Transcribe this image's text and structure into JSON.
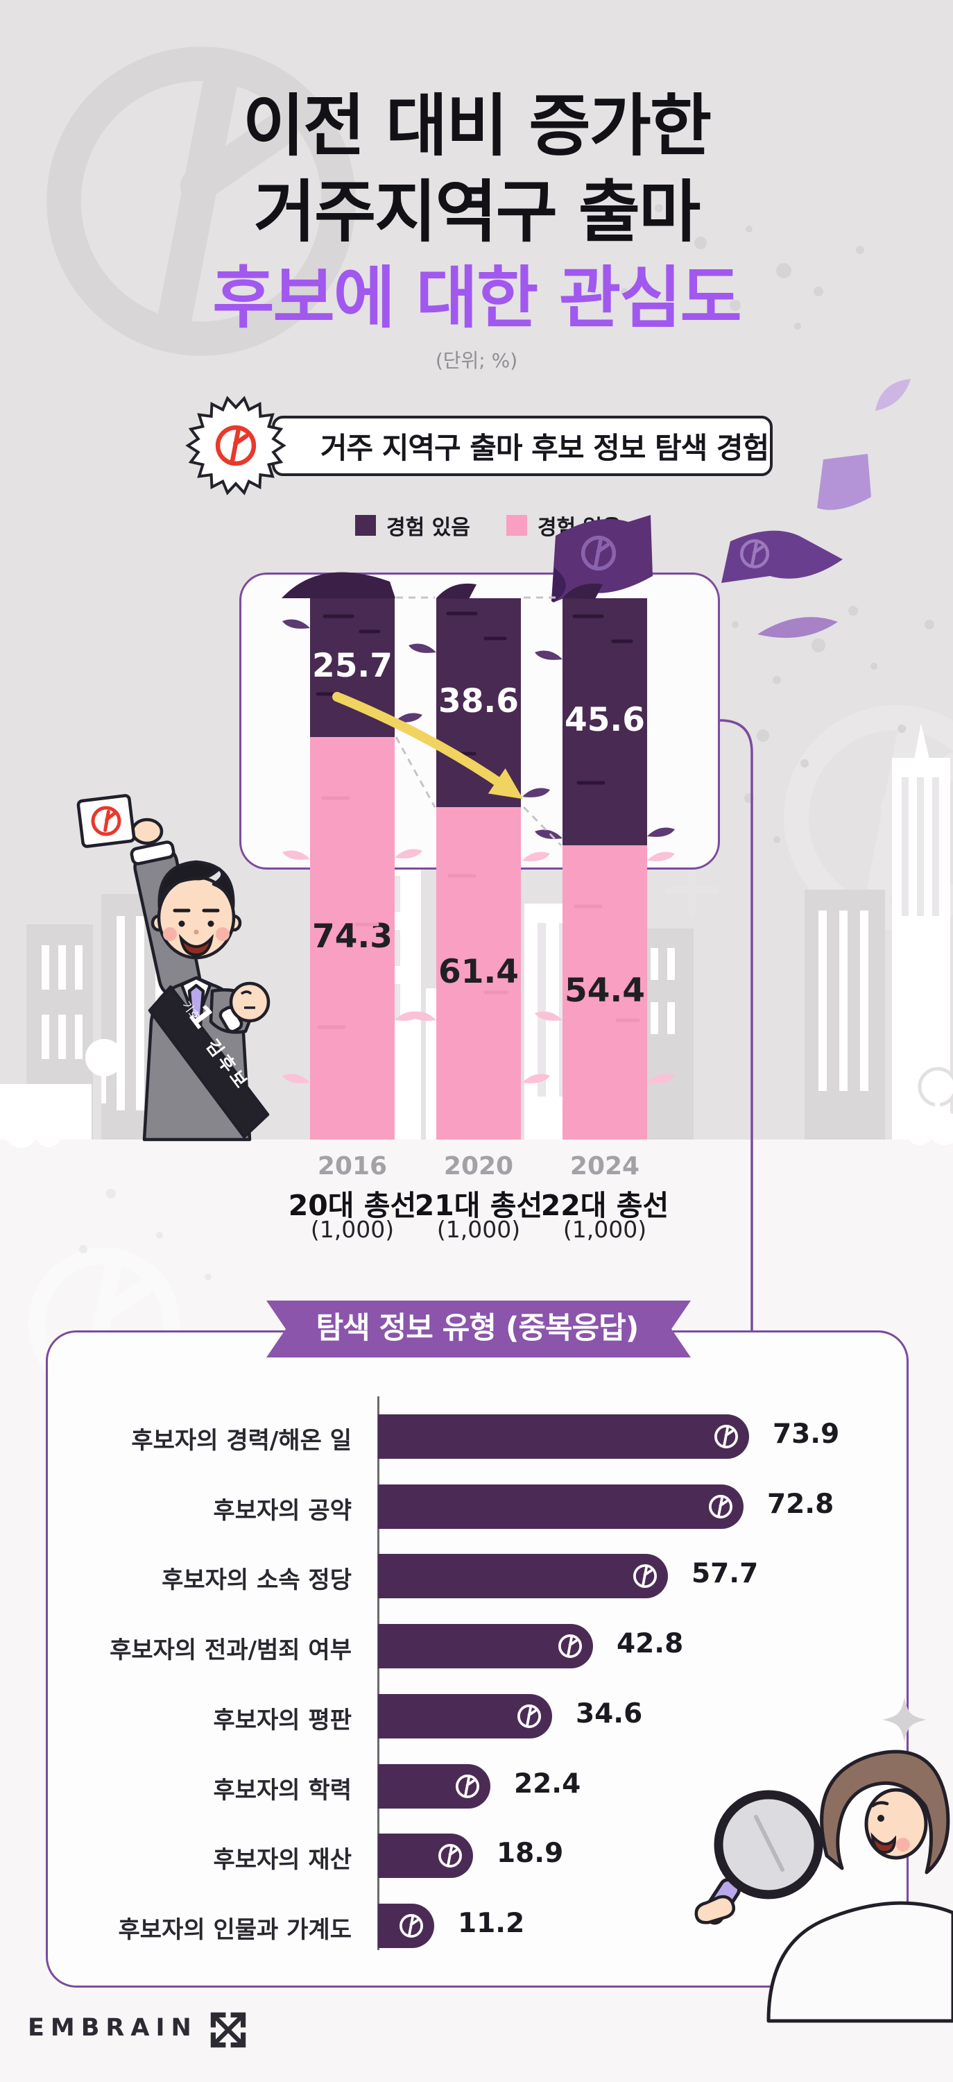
{
  "title": {
    "line1": "이전 대비 증가한",
    "line2": "거주지역구 출마",
    "line3": "후보에 대한 관심도",
    "unit": "(단위; %)"
  },
  "badge": {
    "label": "거주 지역구 출마 후보 정보 탐색 경험",
    "icon": "vote-stamp-icon"
  },
  "legend": [
    {
      "label": "경험 있음",
      "color": "#482a52"
    },
    {
      "label": "경험 없음",
      "color": "#f99fc1"
    }
  ],
  "section2": {
    "title": "탐색 정보 유형 (중복응답)"
  },
  "footer": {
    "logo": "EMBRAIN",
    "logo_icon": "embrain-arrows-icon"
  },
  "illustrations": {
    "candidate_sash_small": "기호",
    "candidate_sash_number": "1",
    "candidate_sash_name": "김후보",
    "characters": [
      "candidate-with-ballot",
      "researcher-with-magnifier"
    ],
    "decor": [
      "vote-stamp-watermarks",
      "city-skyline",
      "flying-ballot-papers",
      "sparkles"
    ]
  },
  "colors": {
    "accent_purple": "#a158ee",
    "bar_dark": "#482a52",
    "bar_pink": "#f99fc1",
    "banner_purple": "#8a55ab",
    "panel_border": "#7b4b9e",
    "arrow_yellow": "#f1d35f",
    "stamp_red": "#e7392c",
    "hbar_purple": "#4b2b55",
    "bg_top": "#e4e2e3",
    "bg_bottom": "#f8f6f7"
  },
  "chart_data": [
    {
      "type": "bar",
      "subtype": "stacked-column",
      "title": "거주 지역구 출마 후보 정보 탐색 경험",
      "unit": "%",
      "categories": [
        "2016",
        "2020",
        "2024"
      ],
      "category_sub": [
        "20대 총선",
        "21대 총선",
        "22대 총선"
      ],
      "category_base": [
        "(1,000)",
        "(1,000)",
        "(1,000)"
      ],
      "series": [
        {
          "name": "경험 있음",
          "color": "#482a52",
          "values": [
            25.7,
            38.6,
            45.6
          ]
        },
        {
          "name": "경험 없음",
          "color": "#f99fc1",
          "values": [
            74.3,
            61.4,
            54.4
          ]
        }
      ],
      "ylim": [
        0,
        100
      ],
      "legend_position": "top",
      "annotations": [
        "yellow-trend-arrow-increasing",
        "dashed-guides-between-bars"
      ]
    },
    {
      "type": "bar",
      "subtype": "horizontal",
      "title": "탐색 정보 유형 (중복응답)",
      "unit": "%",
      "categories": [
        "후보자의 경력/해온 일",
        "후보자의 공약",
        "후보자의 소속 정당",
        "후보자의 전과/범죄 여부",
        "후보자의 평판",
        "후보자의 학력",
        "후보자의 재산",
        "후보자의 인물과 가계도"
      ],
      "values": [
        73.9,
        72.8,
        57.7,
        42.8,
        34.6,
        22.4,
        18.9,
        11.2
      ],
      "xlim": [
        0,
        100
      ],
      "bar_icon": "vote-stamp-icon"
    }
  ]
}
